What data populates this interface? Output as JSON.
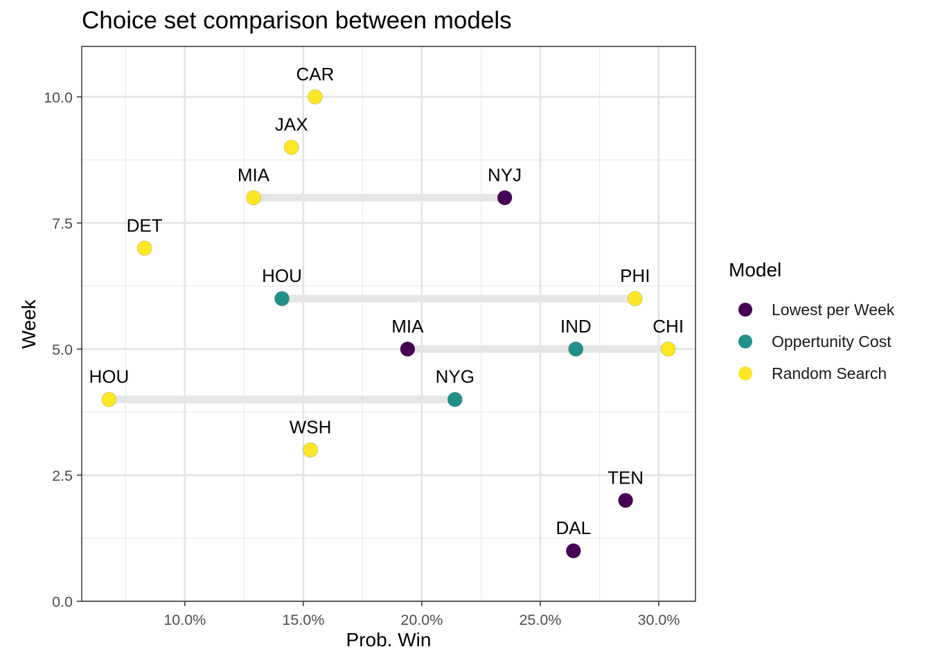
{
  "chart_data": {
    "type": "scatter",
    "title": "Choice set comparison between models",
    "xlabel": "Prob. Win",
    "ylabel": "Week",
    "xlim": [
      0.0565,
      0.3155
    ],
    "ylim": [
      0,
      11
    ],
    "x_ticks": [
      0.1,
      0.15,
      0.2,
      0.25,
      0.3
    ],
    "x_tick_labels": [
      "10.0%",
      "15.0%",
      "20.0%",
      "25.0%",
      "30.0%"
    ],
    "y_ticks": [
      0,
      2.5,
      5,
      7.5,
      10
    ],
    "y_tick_labels": [
      "0.0",
      "2.5",
      "5.0",
      "7.5",
      "10.0"
    ],
    "grid": true,
    "legend_position": "right",
    "legend_title": "Model",
    "series": [
      {
        "name": "Lowest per Week",
        "color": "#440154"
      },
      {
        "name": "Oppertunity Cost",
        "color": "#21908C"
      },
      {
        "name": "Random Search",
        "color": "#FDE725"
      }
    ],
    "points": [
      {
        "week": 1,
        "team": "DAL",
        "prob": 0.264,
        "model": "Lowest per Week"
      },
      {
        "week": 2,
        "team": "TEN",
        "prob": 0.286,
        "model": "Lowest per Week"
      },
      {
        "week": 3,
        "team": "WSH",
        "prob": 0.153,
        "model": "Random Search"
      },
      {
        "week": 4,
        "team": "HOU",
        "prob": 0.068,
        "model": "Random Search"
      },
      {
        "week": 4,
        "team": "NYG",
        "prob": 0.214,
        "model": "Oppertunity Cost"
      },
      {
        "week": 5,
        "team": "MIA",
        "prob": 0.194,
        "model": "Lowest per Week"
      },
      {
        "week": 5,
        "team": "IND",
        "prob": 0.265,
        "model": "Oppertunity Cost"
      },
      {
        "week": 5,
        "team": "CHI",
        "prob": 0.304,
        "model": "Random Search"
      },
      {
        "week": 6,
        "team": "HOU",
        "prob": 0.141,
        "model": "Oppertunity Cost"
      },
      {
        "week": 6,
        "team": "PHI",
        "prob": 0.29,
        "model": "Random Search"
      },
      {
        "week": 7,
        "team": "DET",
        "prob": 0.083,
        "model": "Random Search"
      },
      {
        "week": 8,
        "team": "MIA",
        "prob": 0.129,
        "model": "Random Search"
      },
      {
        "week": 8,
        "team": "NYJ",
        "prob": 0.235,
        "model": "Lowest per Week"
      },
      {
        "week": 9,
        "team": "JAX",
        "prob": 0.145,
        "model": "Random Search"
      },
      {
        "week": 10,
        "team": "CAR",
        "prob": 0.155,
        "model": "Random Search"
      }
    ]
  }
}
